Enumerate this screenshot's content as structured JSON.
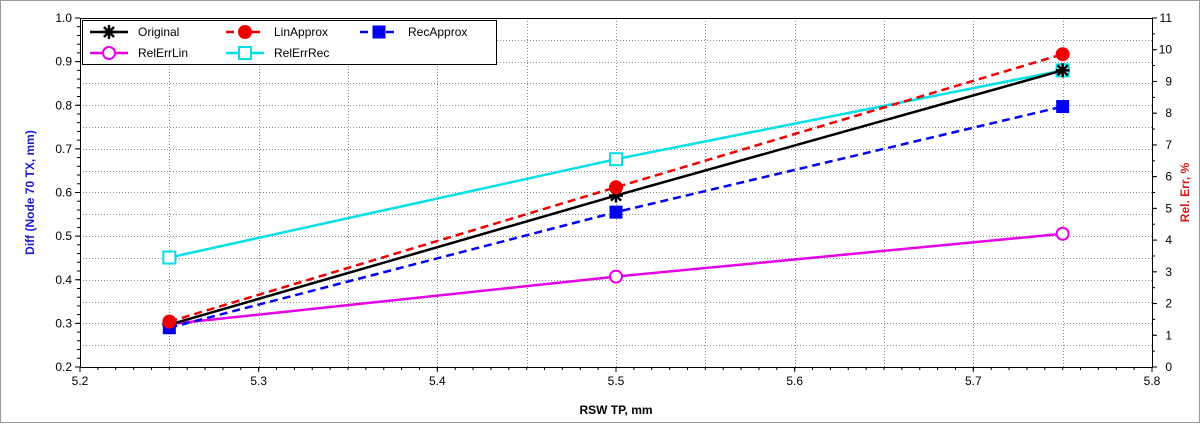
{
  "chart_data": {
    "type": "line",
    "x": [
      5.25,
      5.5,
      5.75
    ],
    "xlabel": "RSW TP, mm",
    "ylabel": "Diff (Node 70 TX, mm)",
    "y2label": "Rel. Err, %",
    "xlim": [
      5.2,
      5.8
    ],
    "ylim": [
      0.2,
      1.0
    ],
    "y2lim": [
      0,
      11
    ],
    "xticks": [
      "5.2",
      "5.3",
      "5.4",
      "5.5",
      "5.6",
      "5.7",
      "5.8"
    ],
    "yticks": [
      "0.2",
      "0.3",
      "0.4",
      "0.5",
      "0.6",
      "0.7",
      "0.8",
      "0.9",
      "1.0"
    ],
    "y2ticks": [
      "0",
      "1",
      "2",
      "3",
      "4",
      "5",
      "6",
      "7",
      "8",
      "9",
      "10",
      "11"
    ],
    "grid": true,
    "legend_position": "top-left",
    "colors": {
      "ylabel": "#1a1ad6",
      "y2label": "#d61a1a",
      "xlabel": "#000000"
    },
    "series": [
      {
        "name": "Original",
        "axis": "left",
        "values": [
          0.297,
          0.593,
          0.88
        ],
        "color": "#000000",
        "dash": "solid",
        "marker": "asterisk"
      },
      {
        "name": "LinApprox",
        "axis": "left",
        "values": [
          0.304,
          0.612,
          0.917
        ],
        "color": "#ee0000",
        "dash": "dashed",
        "marker": "filled-circle"
      },
      {
        "name": "RecApprox",
        "axis": "left",
        "values": [
          0.29,
          0.555,
          0.797
        ],
        "color": "#0000ee",
        "dash": "dashed",
        "marker": "filled-square"
      },
      {
        "name": "RelErrLin",
        "axis": "right",
        "values": [
          1.35,
          2.85,
          4.2
        ],
        "color": "#e600e6",
        "dash": "solid",
        "marker": "open-circle"
      },
      {
        "name": "RelErrRec",
        "axis": "right",
        "values": [
          3.45,
          6.55,
          9.35
        ],
        "color": "#00e0e6",
        "dash": "solid",
        "marker": "open-square"
      }
    ]
  }
}
